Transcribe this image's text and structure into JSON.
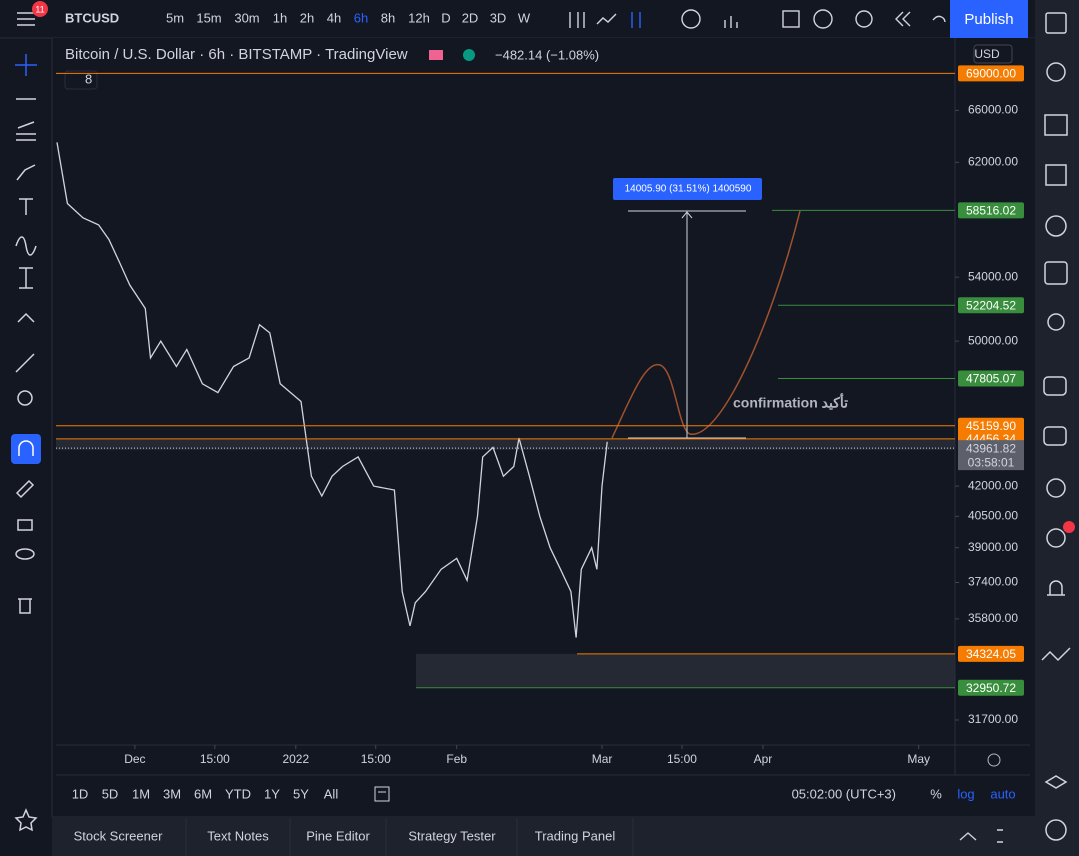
{
  "toolbar": {
    "symbol": "BTCUSD",
    "badge": "11",
    "intervals": [
      "5m",
      "15m",
      "30m",
      "1h",
      "2h",
      "4h",
      "6h",
      "8h",
      "12h",
      "D",
      "2D",
      "3D",
      "W"
    ],
    "active_interval": "6h",
    "publish": "Publish"
  },
  "header": {
    "title": "Bitcoin / U.S. Dollar · 6h · BITSTAMP · TradingView",
    "change": "−482.14 (−1.08%)",
    "indicators": "8",
    "currency": "USD"
  },
  "chart_data": {
    "type": "line",
    "log_scale": true,
    "ylim": [
      30760,
      72000
    ],
    "yticks": [
      {
        "value": 66000,
        "label": "66000.00"
      },
      {
        "value": 62000,
        "label": "62000.00"
      },
      {
        "value": 54000,
        "label": "54000.00"
      },
      {
        "value": 50000,
        "label": "50000.00"
      },
      {
        "value": 42000,
        "label": "42000.00"
      },
      {
        "value": 40500,
        "label": "40500.00"
      },
      {
        "value": 39000,
        "label": "39000.00"
      },
      {
        "value": 37400,
        "label": "37400.00"
      },
      {
        "value": 35800,
        "label": "35800.00"
      },
      {
        "value": 31700,
        "label": "31700.00"
      }
    ],
    "xlim": [
      -15.2,
      158
    ],
    "xticks": [
      {
        "value": 0,
        "label": "Dec"
      },
      {
        "value": 15.4,
        "label": "15:00"
      },
      {
        "value": 31,
        "label": "2022"
      },
      {
        "value": 46.4,
        "label": "15:00"
      },
      {
        "value": 62,
        "label": "Feb"
      },
      {
        "value": 90,
        "label": "Mar"
      },
      {
        "value": 105.4,
        "label": "15:00"
      },
      {
        "value": 121,
        "label": "Apr"
      },
      {
        "value": 151,
        "label": "May"
      }
    ],
    "price": {
      "color": "#d1d4dc",
      "x": [
        -15,
        -13,
        -10,
        -7,
        -5,
        -3,
        -1,
        2,
        3,
        5,
        8,
        10,
        13,
        16,
        19,
        22,
        24,
        26,
        28,
        30,
        32,
        34,
        36,
        38,
        40,
        43,
        46,
        50,
        51.5,
        53,
        54,
        56,
        59,
        62,
        64,
        66,
        67,
        69,
        71,
        73,
        74,
        76,
        78,
        80,
        82,
        84,
        85,
        86,
        88,
        89,
        90,
        91
      ],
      "values": [
        63500,
        59000,
        58000,
        57500,
        56500,
        55000,
        53500,
        52000,
        49000,
        50000,
        48500,
        49500,
        47500,
        47000,
        48500,
        49000,
        51000,
        50500,
        47500,
        47000,
        46500,
        42500,
        41500,
        42500,
        43000,
        43500,
        42000,
        41800,
        37000,
        35500,
        36500,
        37000,
        38000,
        38500,
        37500,
        40500,
        43500,
        44000,
        42500,
        43000,
        44500,
        42500,
        40500,
        39000,
        38000,
        37000,
        35000,
        38000,
        39000,
        38000,
        42000,
        44300
      ]
    },
    "levels": [
      {
        "value": 69000,
        "label": "69000.00",
        "color": "#f57c00"
      },
      {
        "value": 58516.02,
        "label": "58516.02",
        "color": "#388e3c"
      },
      {
        "value": 52204.52,
        "label": "52204.52",
        "color": "#388e3c"
      },
      {
        "value": 47805.07,
        "label": "47805.07",
        "color": "#388e3c"
      },
      {
        "value": 45159.9,
        "label": "45159.90",
        "color": "#f57c00"
      },
      {
        "value": 44456.34,
        "label": "44456.34",
        "color": "#f57c00"
      },
      {
        "value": 34324.05,
        "label": "34324.05",
        "color": "#f57c00"
      },
      {
        "value": 32950.72,
        "label": "32950.72",
        "color": "#388e3c"
      }
    ],
    "last_price": {
      "value": 43961.82,
      "label": "43961.82"
    },
    "countdown": "03:58:01",
    "measure_label": "14005.90 (31.51%) 1400590",
    "annotation": "confirmation تأکید"
  },
  "bottom": {
    "ranges": [
      "1D",
      "5D",
      "1M",
      "3M",
      "6M",
      "YTD",
      "1Y",
      "5Y",
      "All"
    ],
    "time": "05:02:00 (UTC+3)",
    "options": [
      "%",
      "log",
      "auto"
    ],
    "tabs": [
      "Stock Screener",
      "Text Notes",
      "Pine Editor",
      "Strategy Tester",
      "Trading Panel"
    ]
  }
}
